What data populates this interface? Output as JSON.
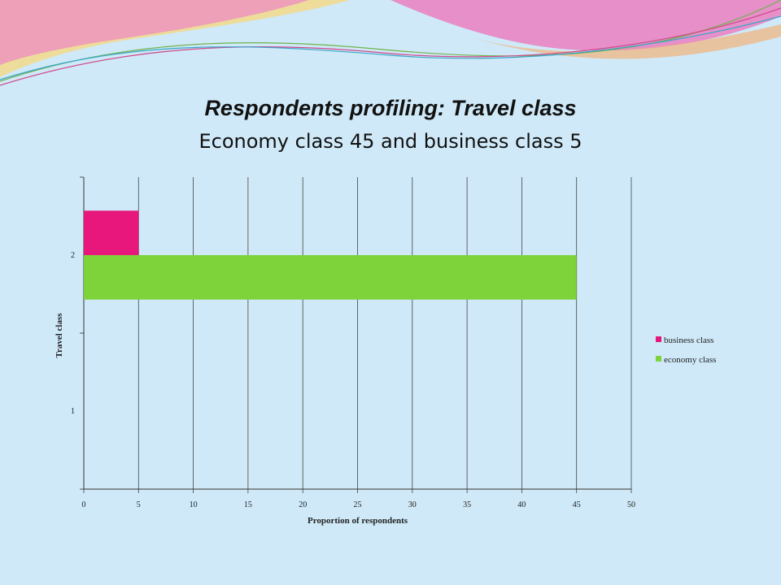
{
  "slide": {
    "title": "Respondents profiling: Travel class",
    "subtitle": "Economy class 45 and business class 5"
  },
  "colors": {
    "background": "#cfe9f8",
    "business": "#e8177b",
    "economy": "#7ed33b",
    "gridline": "#444444"
  },
  "chart_data": {
    "type": "bar",
    "orientation": "horizontal",
    "categories": [
      "1",
      "2"
    ],
    "series": [
      {
        "name": "business class",
        "values": [
          0,
          5
        ],
        "color": "#e8177b"
      },
      {
        "name": "economy class",
        "values": [
          0,
          45
        ],
        "color": "#7ed33b"
      }
    ],
    "xlabel": "Proportion of respondents",
    "ylabel": "Travel class",
    "xlim": [
      0,
      50
    ],
    "xticks": [
      "0",
      "5",
      "10",
      "15",
      "20",
      "25",
      "30",
      "35",
      "40",
      "45",
      "50"
    ],
    "grid": "vertical",
    "legend_position": "right"
  }
}
